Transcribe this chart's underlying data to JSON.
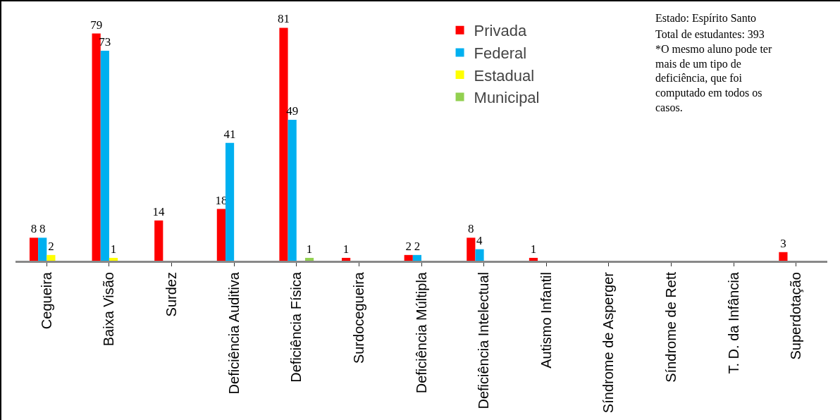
{
  "chart_data": {
    "type": "bar",
    "categories": [
      "Cegueira",
      "Baixa Visão",
      "Surdez",
      "Deficiência Auditiva",
      "Deficiência Física",
      "Surdocegueira",
      "Deficiência Múltipla",
      "Deficiência Intelectual",
      "Autismo Infantil",
      "Síndrome de Asperger",
      "Síndrome de Rett",
      "T. D. da Infância",
      "Superdotação"
    ],
    "series": [
      {
        "name": "Privada",
        "color": "#ff0000",
        "values": [
          8,
          79,
          14,
          18,
          81,
          1,
          2,
          8,
          1,
          null,
          null,
          null,
          3
        ]
      },
      {
        "name": "Federal",
        "color": "#00b0f0",
        "values": [
          8,
          73,
          null,
          41,
          49,
          null,
          2,
          4,
          null,
          null,
          null,
          null,
          null
        ]
      },
      {
        "name": "Estadual",
        "color": "#ffff00",
        "values": [
          2,
          1,
          null,
          null,
          null,
          null,
          null,
          null,
          null,
          null,
          null,
          null,
          null
        ]
      },
      {
        "name": "Municipal",
        "color": "#92d050",
        "values": [
          null,
          null,
          null,
          null,
          1,
          null,
          null,
          null,
          null,
          null,
          null,
          null,
          null
        ]
      }
    ],
    "data_labels": true,
    "legend": "top right",
    "grid": false,
    "annotations": [
      "Estado: Espírito Santo",
      "Total de estudantes: 393 *O mesmo aluno pode ter mais de um tipo de deficiência, que foi computado em todos os casos."
    ]
  }
}
